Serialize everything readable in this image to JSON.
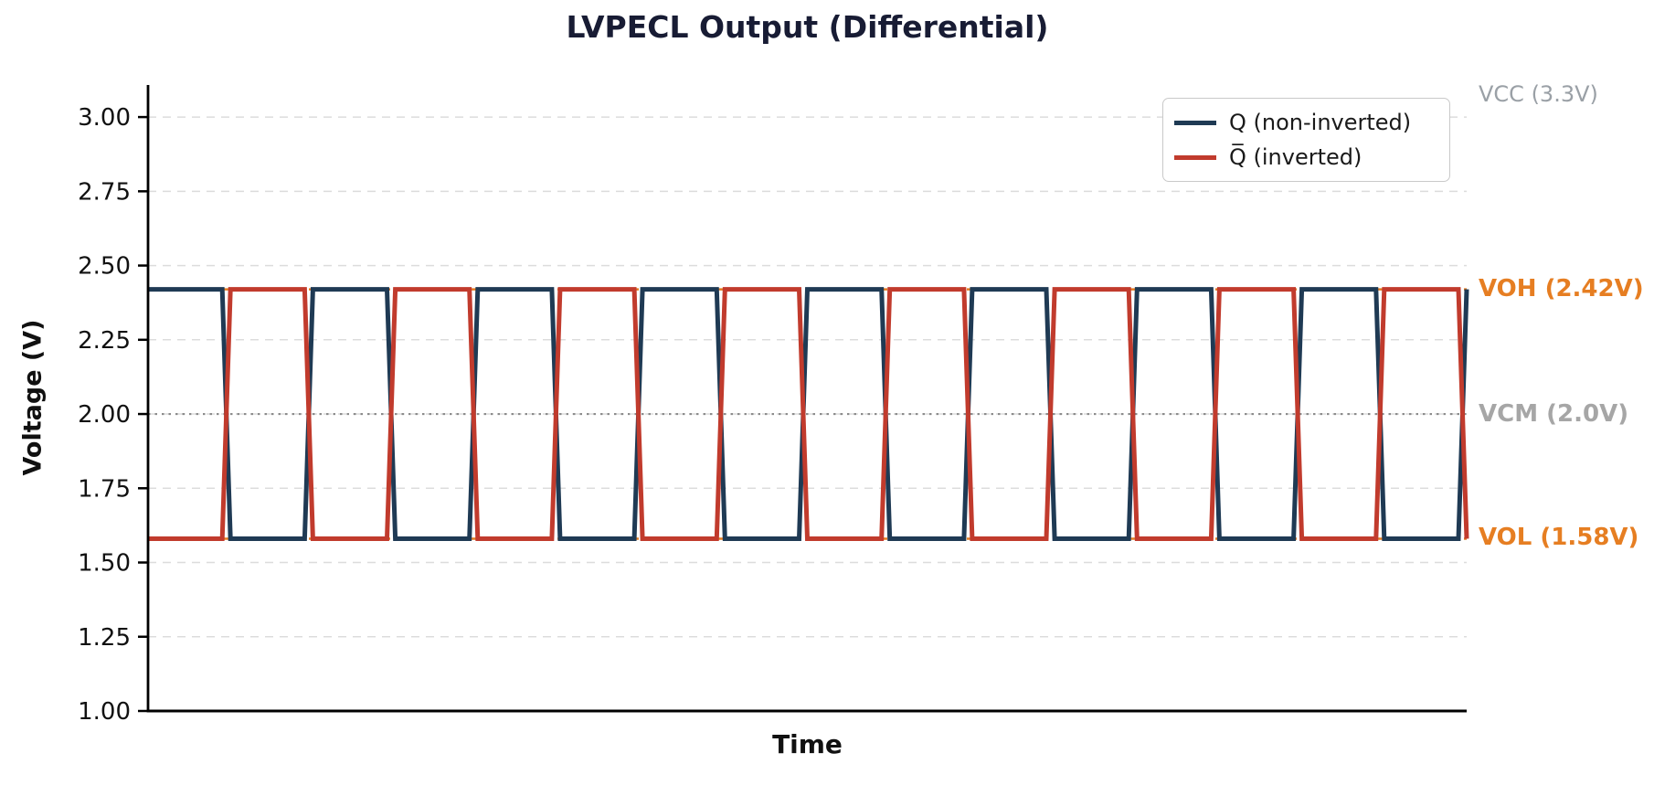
{
  "chart_data": {
    "type": "line",
    "title": "LVPECL Output (Differential)",
    "xlabel": "Time",
    "ylabel": "Voltage (V)",
    "xlim": [
      0,
      16
    ],
    "ylim": [
      1.0,
      3.108
    ],
    "x_tick_labels": [],
    "yticks": [
      {
        "value": 3.0,
        "label": "3.00"
      },
      {
        "value": 2.75,
        "label": "2.75"
      },
      {
        "value": 2.5,
        "label": "2.50"
      },
      {
        "value": 2.25,
        "label": "2.25"
      },
      {
        "value": 2.0,
        "label": "2.00"
      },
      {
        "value": 1.75,
        "label": "1.75"
      },
      {
        "value": 1.5,
        "label": "1.50"
      },
      {
        "value": 1.25,
        "label": "1.25"
      },
      {
        "value": 1.0,
        "label": "1.00"
      }
    ],
    "grid": "horizontal light dashed lines at each y tick",
    "legend_position": "upper right",
    "waveform": {
      "description": "Complementary trapezoidal square waves (differential pair)",
      "num_half_periods": 16,
      "half_period_time_units": 1,
      "transition_fraction": 0.1,
      "voh_volts": 2.42,
      "vol_volts": 1.58,
      "vcm_volts": 2.0,
      "vcc_volts": 3.3
    },
    "series": [
      {
        "name": "Q (non-inverted)",
        "color": "#1f3a54",
        "initial_state": "high"
      },
      {
        "name": "Q̅ (inverted)",
        "color": "#c13b2d",
        "initial_state": "low"
      }
    ],
    "reference_lines": [
      {
        "label": "VCC (3.3V)",
        "value": 3.3,
        "color": "#9aa0a6",
        "style": "dashed",
        "clipped_above_axis": true
      },
      {
        "label": "VOH (2.42V)",
        "value": 2.42,
        "color": "#e67e22",
        "style": "dashed"
      },
      {
        "label": "VCM (2.0V)",
        "value": 2.0,
        "color": "#8c8c8c",
        "style": "dotted"
      },
      {
        "label": "VOL (1.58V)",
        "value": 1.58,
        "color": "#e67e22",
        "style": "dashed"
      }
    ],
    "axis_color": "#000000",
    "gridline_color": "#dcdcdc"
  }
}
